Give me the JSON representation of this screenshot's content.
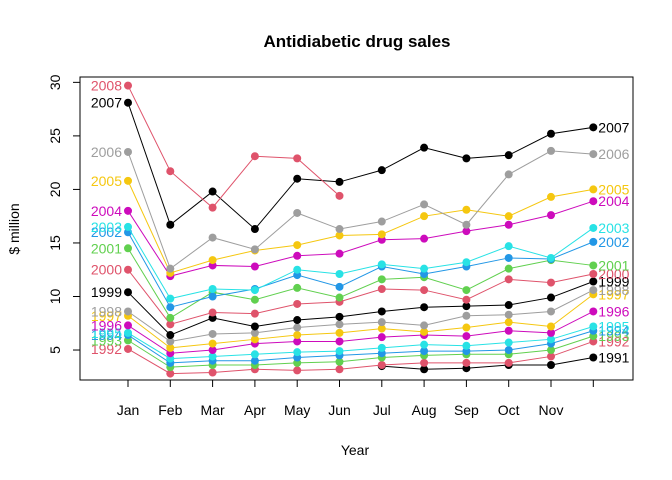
{
  "chart_data": {
    "type": "line",
    "title": "Antidiabetic drug sales",
    "xlabel": "Year",
    "ylabel": "$ million",
    "categories": [
      "Jan",
      "Feb",
      "Mar",
      "Apr",
      "May",
      "Jun",
      "Jul",
      "Aug",
      "Sep",
      "Oct",
      "Nov",
      ""
    ],
    "ylim": [
      2.2,
      30.5
    ],
    "y_ticks": [
      5,
      10,
      15,
      20,
      25,
      30
    ],
    "grid": false,
    "series": [
      {
        "name": "1991",
        "color": "#000000",
        "values": [
          null,
          null,
          null,
          null,
          null,
          null,
          3.5,
          3.2,
          3.3,
          3.6,
          3.6,
          4.3
        ],
        "label_end": true
      },
      {
        "name": "1992",
        "color": "#DF536B",
        "values": [
          5.1,
          2.8,
          2.9,
          3.2,
          3.1,
          3.2,
          3.6,
          3.8,
          3.8,
          3.8,
          4.4,
          5.8
        ],
        "label_start": true,
        "label_end": true
      },
      {
        "name": "1993",
        "color": "#61D04F",
        "values": [
          5.9,
          3.4,
          3.6,
          3.6,
          3.8,
          3.9,
          4.3,
          4.5,
          4.6,
          4.6,
          5.0,
          6.3
        ],
        "label_start": true,
        "label_end": true
      },
      {
        "name": "1994",
        "color": "#2297E6",
        "values": [
          6.4,
          3.8,
          4.0,
          4.0,
          4.3,
          4.5,
          4.7,
          4.9,
          4.9,
          5.0,
          5.6,
          6.8
        ],
        "label_start": true,
        "label_end": true
      },
      {
        "name": "1995",
        "color": "#28E2E5",
        "values": [
          6.6,
          4.2,
          4.4,
          4.6,
          4.8,
          4.9,
          5.2,
          5.5,
          5.4,
          5.7,
          6.0,
          7.2
        ],
        "label_start": true,
        "label_end": true
      },
      {
        "name": "1996",
        "color": "#CD0BBC",
        "values": [
          7.3,
          4.7,
          5.0,
          5.6,
          5.8,
          5.8,
          6.2,
          6.4,
          6.3,
          6.8,
          6.6,
          8.6
        ],
        "label_start": true,
        "label_end": true
      },
      {
        "name": "1997",
        "color": "#F5C710",
        "values": [
          8.2,
          5.2,
          5.6,
          6.0,
          6.4,
          6.6,
          7.0,
          6.7,
          7.1,
          7.6,
          7.2,
          10.2
        ],
        "label_start": true,
        "label_end": true
      },
      {
        "name": "1998",
        "color": "#9E9E9E",
        "values": [
          8.6,
          5.8,
          6.5,
          6.6,
          7.1,
          7.4,
          7.6,
          7.3,
          8.2,
          8.3,
          8.6,
          10.6
        ],
        "label_start": true,
        "label_end": true
      },
      {
        "name": "1999",
        "color": "#000000",
        "values": [
          10.4,
          6.4,
          8.0,
          7.2,
          7.8,
          8.1,
          8.6,
          9.0,
          9.1,
          9.2,
          9.9,
          11.4
        ],
        "label_start": true,
        "label_end": true
      },
      {
        "name": "2000",
        "color": "#DF536B",
        "values": [
          12.5,
          7.4,
          8.5,
          8.4,
          9.3,
          9.5,
          10.7,
          10.6,
          9.7,
          11.6,
          11.3,
          12.1
        ],
        "label_start": true,
        "label_end": true
      },
      {
        "name": "2001",
        "color": "#61D04F",
        "values": [
          14.5,
          8.0,
          10.4,
          9.7,
          10.8,
          9.9,
          11.6,
          11.8,
          10.6,
          12.6,
          13.4,
          12.9
        ],
        "label_start": true,
        "label_end": true
      },
      {
        "name": "2002",
        "color": "#2297E6",
        "values": [
          16.0,
          9.0,
          10.0,
          10.7,
          12.0,
          10.9,
          12.8,
          12.1,
          12.8,
          13.6,
          13.5,
          15.1
        ],
        "label_start": true,
        "label_end": true
      },
      {
        "name": "2003",
        "color": "#28E2E5",
        "values": [
          16.5,
          9.8,
          10.7,
          10.6,
          12.5,
          12.1,
          13.0,
          12.6,
          13.2,
          14.7,
          13.6,
          16.4
        ],
        "label_start": true,
        "label_end": true
      },
      {
        "name": "2004",
        "color": "#CD0BBC",
        "values": [
          18.0,
          11.9,
          12.9,
          12.8,
          13.8,
          14.0,
          15.3,
          15.4,
          16.1,
          16.7,
          17.6,
          18.9
        ],
        "label_start": true,
        "label_end": true
      },
      {
        "name": "2005",
        "color": "#F5C710",
        "values": [
          20.8,
          12.2,
          13.4,
          14.3,
          14.8,
          15.7,
          15.8,
          17.5,
          18.1,
          17.5,
          19.3,
          20.0
        ],
        "label_start": true,
        "label_end": true
      },
      {
        "name": "2006",
        "color": "#9E9E9E",
        "values": [
          23.5,
          12.6,
          15.5,
          14.4,
          17.8,
          16.3,
          17.0,
          18.6,
          16.7,
          21.4,
          23.6,
          23.3
        ],
        "label_start": true,
        "label_end": true
      },
      {
        "name": "2007",
        "color": "#000000",
        "values": [
          28.1,
          16.7,
          19.8,
          16.3,
          21.0,
          20.7,
          21.8,
          23.9,
          22.9,
          23.2,
          25.2,
          25.8
        ],
        "label_start": true,
        "label_end": true
      },
      {
        "name": "2008",
        "color": "#DF536B",
        "values": [
          29.7,
          21.7,
          18.3,
          23.1,
          22.9,
          19.4,
          null,
          null,
          null,
          null,
          null,
          null
        ],
        "label_start": true,
        "label_end": false
      }
    ]
  }
}
